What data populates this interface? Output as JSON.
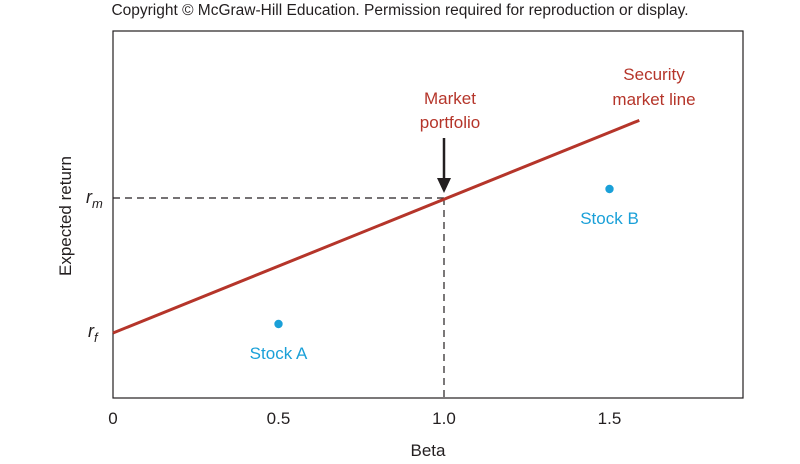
{
  "copyright": "Copyright © McGraw-Hill Education. Permission required for reproduction or display.",
  "colors": {
    "sml": "#b5352a",
    "stock": "#1aa0d8",
    "axis": "#231f20"
  },
  "chart_data": {
    "type": "line",
    "xlabel": "Beta",
    "ylabel": "Expected return",
    "xlim": [
      0,
      1.86
    ],
    "x_ticks": [
      "0",
      "0.5",
      "1.0",
      "1.5"
    ],
    "y_ticks": [
      {
        "label_base": "r",
        "label_sub": "m",
        "value": "rm"
      },
      {
        "label_base": "r",
        "label_sub": "f",
        "value": "rf"
      }
    ],
    "grid": false,
    "series": [
      {
        "name": "Security market line",
        "x": [
          0,
          1.0,
          1.59
        ],
        "y": [
          "rf",
          "rm",
          "above rm"
        ]
      }
    ],
    "points": [
      {
        "label": "Stock A",
        "beta": 0.5
      },
      {
        "label": "Stock B",
        "beta": 1.5
      }
    ],
    "annotations": {
      "sml_label": [
        "Security",
        "market line"
      ],
      "market_label": [
        "Market",
        "portfolio"
      ],
      "market_beta": 1.0
    }
  }
}
